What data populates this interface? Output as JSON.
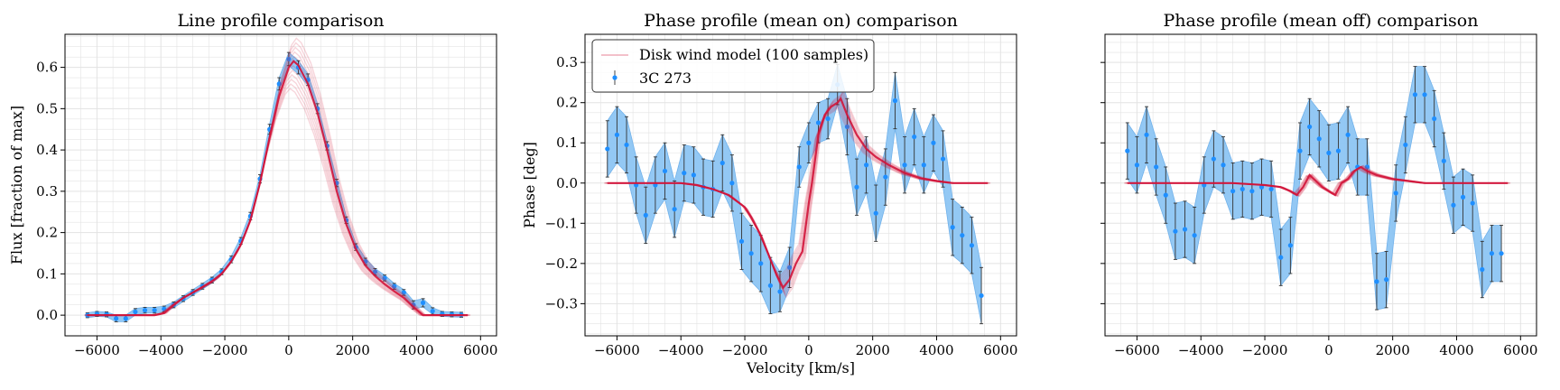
{
  "figure": {
    "colors": {
      "data": "#1f8fff",
      "band": "#8ec6f4",
      "band_edge": "#6aaeea",
      "model": "#d2143a",
      "grid": "#e3e3e3",
      "errorbar": "#333333"
    }
  },
  "chart_data": [
    {
      "type": "line",
      "title": "Line profile comparison",
      "xlabel": "",
      "ylabel": "Flux [fraction of max]",
      "xlim": [
        -7000,
        6500
      ],
      "ylim": [
        -0.05,
        0.68
      ],
      "xticks": [
        -6000,
        -4000,
        -2000,
        0,
        2000,
        4000,
        6000
      ],
      "xtick_labels": [
        "−6000",
        "−4000",
        "−2000",
        "0",
        "2000",
        "4000",
        "6000"
      ],
      "yticks": [
        0.0,
        0.1,
        0.2,
        0.3,
        0.4,
        0.5,
        0.6
      ],
      "ytick_labels": [
        "0.0",
        "0.1",
        "0.2",
        "0.3",
        "0.4",
        "0.5",
        "0.6"
      ],
      "grid": true,
      "series": [
        {
          "kind": "data_with_errors",
          "x": [
            -6300,
            -6000,
            -5700,
            -5400,
            -5100,
            -4800,
            -4500,
            -4200,
            -3900,
            -3600,
            -3300,
            -3000,
            -2700,
            -2400,
            -2100,
            -1800,
            -1500,
            -1200,
            -900,
            -600,
            -300,
            0,
            300,
            600,
            900,
            1200,
            1500,
            1800,
            2100,
            2400,
            2700,
            3000,
            3300,
            3600,
            3900,
            4200,
            4500,
            4800,
            5100,
            5400
          ],
          "y": [
            0.0,
            0.003,
            0.002,
            -0.008,
            -0.008,
            0.008,
            0.012,
            0.012,
            0.015,
            0.025,
            0.04,
            0.055,
            0.07,
            0.085,
            0.105,
            0.135,
            0.18,
            0.24,
            0.33,
            0.45,
            0.56,
            0.62,
            0.6,
            0.57,
            0.5,
            0.41,
            0.32,
            0.23,
            0.165,
            0.13,
            0.105,
            0.09,
            0.07,
            0.055,
            0.025,
            0.03,
            0.01,
            0.003,
            0.002,
            0.001
          ],
          "err": [
            0.006,
            0.006,
            0.006,
            0.008,
            0.008,
            0.008,
            0.007,
            0.007,
            0.007,
            0.007,
            0.007,
            0.007,
            0.007,
            0.007,
            0.007,
            0.008,
            0.008,
            0.009,
            0.01,
            0.012,
            0.015,
            0.016,
            0.016,
            0.014,
            0.012,
            0.01,
            0.009,
            0.008,
            0.008,
            0.008,
            0.008,
            0.007,
            0.007,
            0.007,
            0.01,
            0.01,
            0.008,
            0.006,
            0.006,
            0.006
          ]
        },
        {
          "kind": "model",
          "x": [
            -6300,
            -5000,
            -4200,
            -3900,
            -3600,
            -3300,
            -3000,
            -2700,
            -2400,
            -2100,
            -1800,
            -1500,
            -1200,
            -900,
            -600,
            -300,
            0,
            150,
            300,
            600,
            900,
            1200,
            1500,
            1800,
            2100,
            2400,
            2700,
            3000,
            3300,
            3600,
            3900,
            4200,
            4500,
            5000,
            5600
          ],
          "y": [
            0.0,
            0.0,
            0.0,
            0.005,
            0.025,
            0.042,
            0.055,
            0.068,
            0.082,
            0.1,
            0.13,
            0.17,
            0.23,
            0.32,
            0.43,
            0.53,
            0.6,
            0.615,
            0.605,
            0.56,
            0.49,
            0.4,
            0.3,
            0.22,
            0.16,
            0.12,
            0.095,
            0.075,
            0.058,
            0.042,
            0.02,
            0.0,
            0.0,
            0.0,
            0.0
          ],
          "samples": 12
        }
      ]
    },
    {
      "type": "line",
      "title": "Phase profile (mean on) comparison",
      "xlabel": "Velocity [km/s]",
      "ylabel": "Phase [deg]",
      "xlim": [
        -7000,
        6500
      ],
      "ylim": [
        -0.38,
        0.37
      ],
      "xticks": [
        -6000,
        -4000,
        -2000,
        0,
        2000,
        4000,
        6000
      ],
      "xtick_labels": [
        "−6000",
        "−4000",
        "−2000",
        "0",
        "2000",
        "4000",
        "6000"
      ],
      "yticks": [
        -0.3,
        -0.2,
        -0.1,
        0.0,
        0.1,
        0.2,
        0.3
      ],
      "ytick_labels": [
        "−0.3",
        "−0.2",
        "−0.1",
        "0.0",
        "0.1",
        "0.2",
        "0.3"
      ],
      "grid": true,
      "legend": {
        "placement": "upper-left",
        "entries": [
          "Disk wind model (100 samples)",
          "3C 273"
        ]
      },
      "series": [
        {
          "kind": "data_with_errors",
          "name": "3C 273",
          "x": [
            -6300,
            -6000,
            -5700,
            -5400,
            -5100,
            -4800,
            -4500,
            -4200,
            -3900,
            -3600,
            -3300,
            -3000,
            -2700,
            -2400,
            -2100,
            -1800,
            -1500,
            -1200,
            -900,
            -600,
            -300,
            0,
            300,
            600,
            900,
            1200,
            1500,
            1800,
            2100,
            2400,
            2700,
            3000,
            3300,
            3600,
            3900,
            4200,
            4500,
            4800,
            5100,
            5400
          ],
          "y": [
            0.085,
            0.12,
            0.095,
            -0.005,
            -0.08,
            -0.005,
            0.03,
            -0.065,
            0.025,
            0.02,
            -0.01,
            -0.015,
            0.05,
            0.0,
            -0.145,
            -0.175,
            -0.2,
            -0.255,
            -0.27,
            -0.21,
            0.04,
            0.1,
            0.15,
            0.16,
            0.245,
            0.14,
            -0.01,
            0.045,
            -0.075,
            0.015,
            0.205,
            0.045,
            0.115,
            0.045,
            0.1,
            0.06,
            -0.11,
            -0.13,
            -0.155,
            -0.28
          ],
          "err": [
            0.07,
            0.07,
            0.07,
            0.07,
            0.07,
            0.07,
            0.07,
            0.07,
            0.07,
            0.07,
            0.07,
            0.07,
            0.07,
            0.07,
            0.07,
            0.07,
            0.07,
            0.07,
            0.05,
            0.05,
            0.05,
            0.05,
            0.05,
            0.05,
            0.05,
            0.07,
            0.07,
            0.07,
            0.07,
            0.07,
            0.07,
            0.07,
            0.07,
            0.07,
            0.07,
            0.07,
            0.07,
            0.07,
            0.07,
            0.07
          ]
        },
        {
          "kind": "model",
          "name": "Disk wind model (100 samples)",
          "x": [
            -6300,
            -4000,
            -3500,
            -3000,
            -2500,
            -2000,
            -1800,
            -1500,
            -1200,
            -1000,
            -800,
            -600,
            -400,
            -200,
            0,
            100,
            300,
            500,
            700,
            900,
            1000,
            1200,
            1500,
            1800,
            2100,
            2500,
            3000,
            3500,
            4000,
            4500,
            5600
          ],
          "y": [
            0.0,
            0.0,
            -0.005,
            -0.015,
            -0.03,
            -0.06,
            -0.085,
            -0.13,
            -0.19,
            -0.23,
            -0.26,
            -0.24,
            -0.2,
            -0.17,
            -0.05,
            0.0,
            0.12,
            0.17,
            0.19,
            0.2,
            0.21,
            0.17,
            0.12,
            0.085,
            0.065,
            0.045,
            0.025,
            0.012,
            0.005,
            0.0,
            0.0
          ],
          "samples": 12
        }
      ]
    },
    {
      "type": "line",
      "title": "Phase profile (mean off) comparison",
      "xlabel": "",
      "ylabel": "",
      "xlim": [
        -7000,
        6500
      ],
      "ylim": [
        -0.38,
        0.37
      ],
      "xticks": [
        -6000,
        -4000,
        -2000,
        0,
        2000,
        4000,
        6000
      ],
      "xtick_labels": [
        "−6000",
        "−4000",
        "−2000",
        "0",
        "2000",
        "4000",
        "6000"
      ],
      "yticks": [
        -0.3,
        -0.2,
        -0.1,
        0.0,
        0.1,
        0.2,
        0.3
      ],
      "ytick_labels": [],
      "grid": true,
      "series": [
        {
          "kind": "data_with_errors",
          "x": [
            -6300,
            -6000,
            -5700,
            -5400,
            -5100,
            -4800,
            -4500,
            -4200,
            -3900,
            -3600,
            -3300,
            -3000,
            -2700,
            -2400,
            -2100,
            -1800,
            -1500,
            -1200,
            -900,
            -600,
            -300,
            0,
            300,
            600,
            900,
            1200,
            1500,
            1800,
            2100,
            2400,
            2700,
            3000,
            3300,
            3600,
            3900,
            4200,
            4500,
            4800,
            5100,
            5400
          ],
          "y": [
            0.08,
            0.045,
            0.12,
            0.04,
            -0.03,
            -0.12,
            -0.115,
            -0.13,
            -0.005,
            0.06,
            0.045,
            -0.02,
            -0.015,
            -0.02,
            -0.01,
            -0.015,
            -0.185,
            -0.155,
            0.08,
            0.14,
            0.11,
            0.075,
            0.08,
            0.12,
            0.04,
            0.04,
            -0.245,
            -0.24,
            -0.025,
            0.095,
            0.22,
            0.22,
            0.16,
            0.055,
            -0.055,
            -0.035,
            -0.05,
            -0.215,
            -0.175,
            -0.175
          ],
          "err": [
            0.07,
            0.07,
            0.07,
            0.07,
            0.07,
            0.07,
            0.07,
            0.07,
            0.07,
            0.07,
            0.07,
            0.07,
            0.07,
            0.07,
            0.07,
            0.07,
            0.07,
            0.07,
            0.07,
            0.07,
            0.07,
            0.07,
            0.07,
            0.07,
            0.07,
            0.07,
            0.07,
            0.07,
            0.07,
            0.07,
            0.07,
            0.07,
            0.07,
            0.07,
            0.07,
            0.07,
            0.07,
            0.07,
            0.07,
            0.07
          ]
        },
        {
          "kind": "model",
          "x": [
            -6300,
            -3000,
            -2000,
            -1500,
            -1200,
            -1000,
            -800,
            -600,
            -400,
            -200,
            0,
            200,
            400,
            600,
            800,
            1000,
            1200,
            1500,
            2000,
            2500,
            3000,
            4000,
            5600
          ],
          "y": [
            0.0,
            0.0,
            -0.005,
            -0.01,
            -0.02,
            -0.03,
            -0.01,
            0.02,
            0.005,
            -0.01,
            -0.02,
            -0.03,
            0.0,
            0.01,
            0.03,
            0.04,
            0.03,
            0.02,
            0.01,
            0.005,
            0.0,
            0.0,
            0.0
          ],
          "samples": 12
        }
      ]
    }
  ]
}
